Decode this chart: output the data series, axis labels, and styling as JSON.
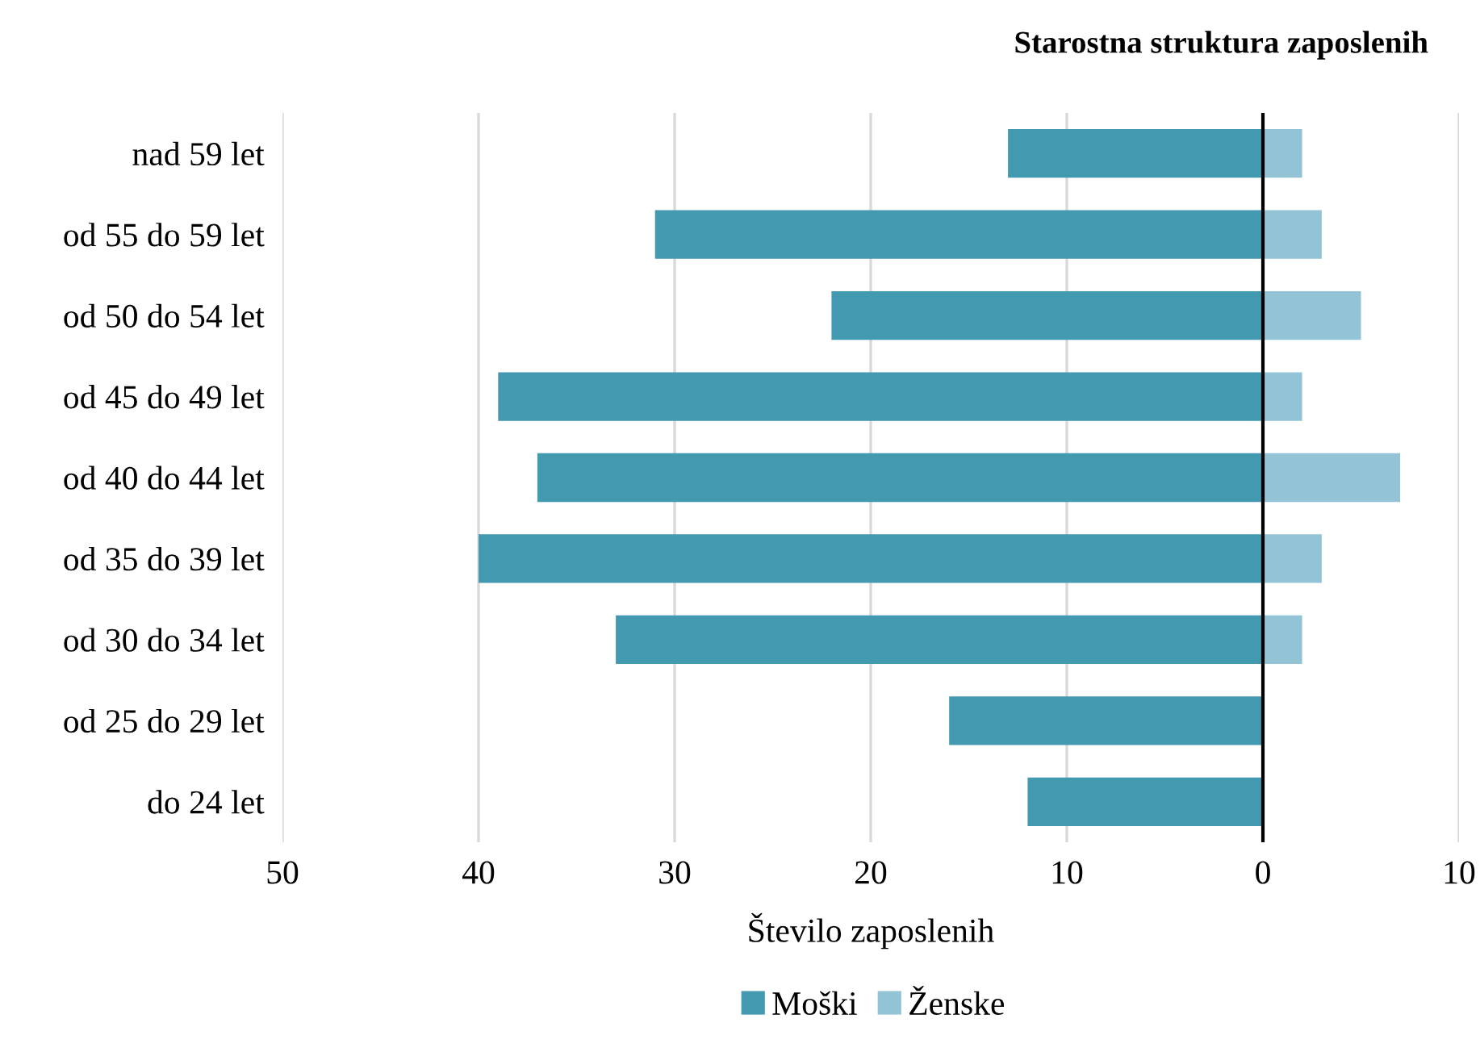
{
  "chart_data": {
    "type": "bar",
    "orientation": "horizontal",
    "stacked": true,
    "title": "Starostna struktura zaposlenih",
    "xlabel": "Število zaposlenih",
    "categories": [
      "nad 59 let",
      "od 55 do 59 let",
      "od 50 do 54 let",
      "od 45 do 49 let",
      "od 40 do 44 let",
      "od 35 do 39 let",
      "od 30 do 34 let",
      "od 25 do 29 let",
      "do 24 let"
    ],
    "series": [
      {
        "name": "Moški",
        "color": "#4299b0",
        "values": [
          -13,
          -31,
          -22,
          -39,
          -37,
          -40,
          -33,
          -16,
          -12
        ]
      },
      {
        "name": "Ženske",
        "color": "#93c4d5",
        "values": [
          2,
          3,
          5,
          2,
          7,
          3,
          2,
          0,
          0
        ]
      }
    ],
    "xlim": [
      -50,
      10
    ],
    "xticks": [
      {
        "value": -50,
        "label": "50"
      },
      {
        "value": -40,
        "label": "40"
      },
      {
        "value": -30,
        "label": "30"
      },
      {
        "value": -20,
        "label": "20"
      },
      {
        "value": -10,
        "label": "10"
      },
      0,
      10
    ],
    "grid": "x",
    "legend": "bottom",
    "ref_lines": [
      {
        "axis": "x",
        "value": 0,
        "color": "#000000"
      }
    ]
  }
}
